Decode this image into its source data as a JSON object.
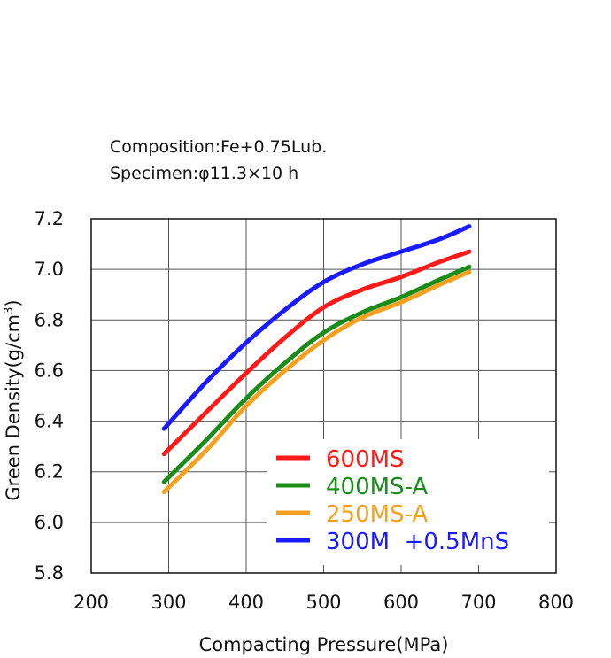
{
  "chart_data": {
    "type": "line",
    "notes": [
      "Composition:Fe+0.75Lub.",
      "Specimen:φ11.3×10 h"
    ],
    "xlabel": "Compacting Pressure(MPa)",
    "ylabel_main": "Green Density(g/cm",
    "ylabel_sup": "3",
    "ylabel_close": ")",
    "xlim": [
      200,
      800
    ],
    "ylim": [
      5.8,
      7.2
    ],
    "xticks": [
      "200",
      "300",
      "400",
      "500",
      "600",
      "700",
      "800"
    ],
    "yticks": [
      "5.8",
      "6.0",
      "6.2",
      "6.4",
      "6.6",
      "6.8",
      "7.0",
      "7.2"
    ],
    "grid": true,
    "legend_position": "lower-right",
    "x": [
      294,
      350,
      400,
      450,
      500,
      550,
      600,
      650,
      688
    ],
    "series": [
      {
        "name": "600MS",
        "color": "#ff1a1a",
        "values": [
          6.27,
          6.44,
          6.59,
          6.73,
          6.85,
          6.92,
          6.97,
          7.03,
          7.07
        ]
      },
      {
        "name": "400MS-A",
        "color": "#1a8c1a",
        "values": [
          6.16,
          6.33,
          6.49,
          6.63,
          6.75,
          6.83,
          6.89,
          6.96,
          7.01
        ]
      },
      {
        "name": "250MS-A",
        "color": "#f5a020",
        "values": [
          6.12,
          6.29,
          6.46,
          6.6,
          6.72,
          6.81,
          6.87,
          6.94,
          6.99
        ]
      },
      {
        "name": "300M  +0.5MnS",
        "color": "#1a1aff",
        "values": [
          6.37,
          6.56,
          6.71,
          6.84,
          6.95,
          7.02,
          7.07,
          7.12,
          7.17
        ]
      }
    ]
  }
}
